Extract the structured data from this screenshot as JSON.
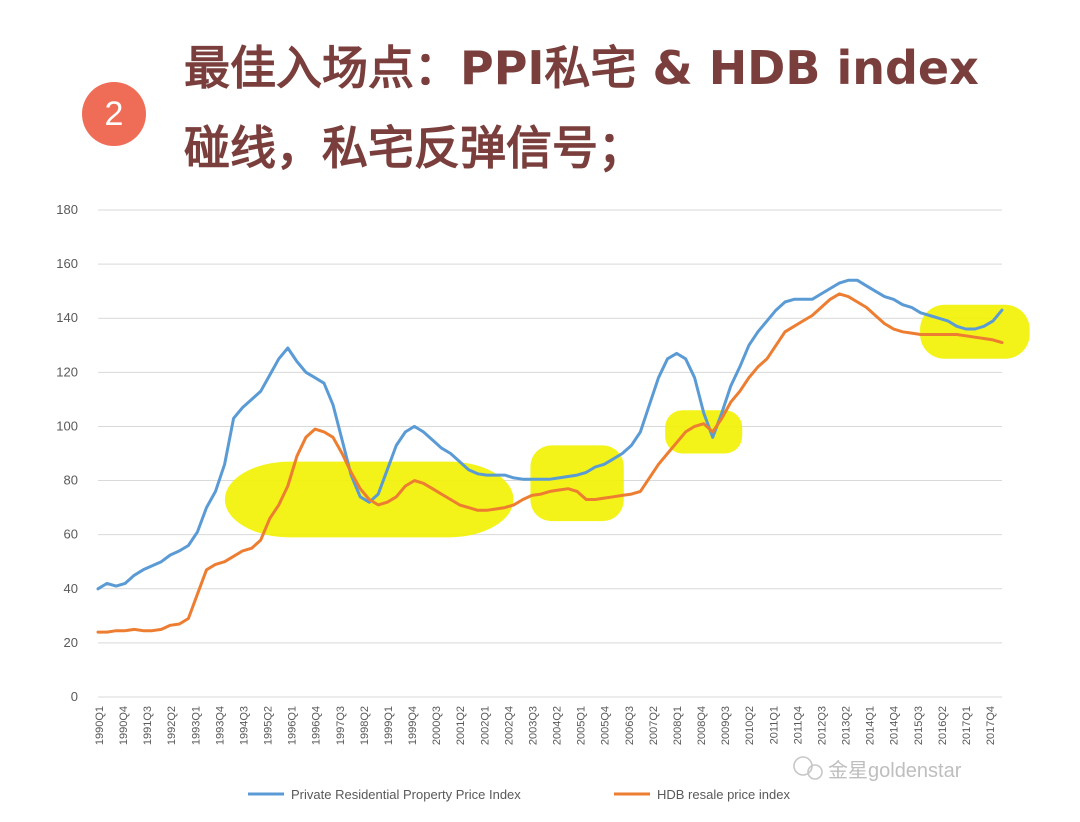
{
  "header": {
    "badge_number": "2",
    "title_line1": "最佳入场点：PPI私宅 & HDB index",
    "title_line2": "碰线，私宅反弹信号；"
  },
  "watermark": "金星goldenstar",
  "colors": {
    "ppi": "#5b9bd5",
    "hdb": "#ed7d31",
    "highlight": "#f2f200",
    "grid": "#d9d9d9",
    "title": "#7a3f3c",
    "badge": "#ef6c57"
  },
  "chart_data": {
    "type": "line",
    "ylim": [
      0,
      180
    ],
    "yticks": [
      "0",
      "20",
      "40",
      "60",
      "80",
      "100",
      "120",
      "140",
      "160",
      "180"
    ],
    "grid": true,
    "legend_position": "bottom",
    "x_tick_labels": [
      "1990Q1",
      "1990Q4",
      "1991Q3",
      "1992Q2",
      "1993Q1",
      "1993Q4",
      "1994Q3",
      "1995Q2",
      "1996Q1",
      "1996Q4",
      "1997Q3",
      "1998Q2",
      "1999Q1",
      "1999Q4",
      "2000Q3",
      "2001Q2",
      "2002Q1",
      "2002Q4",
      "2003Q3",
      "2004Q2",
      "2005Q1",
      "2005Q4",
      "2006Q3",
      "2007Q2",
      "2008Q1",
      "2008Q4",
      "2009Q3",
      "2010Q2",
      "2011Q1",
      "2011Q4",
      "2012Q3",
      "2013Q2",
      "2014Q1",
      "2014Q4",
      "2015Q3",
      "2016Q2",
      "2017Q1",
      "2017Q4"
    ],
    "series": [
      {
        "name": "Private Residential Property Price Index",
        "color": "#5b9bd5",
        "points": [
          [
            0,
            40
          ],
          [
            1,
            42
          ],
          [
            2,
            41
          ],
          [
            3,
            42
          ],
          [
            4,
            45
          ],
          [
            5,
            47
          ],
          [
            6,
            48.5
          ],
          [
            7,
            50
          ],
          [
            8,
            52.5
          ],
          [
            9,
            54
          ],
          [
            10,
            56
          ],
          [
            11,
            61
          ],
          [
            12,
            70
          ],
          [
            13,
            76
          ],
          [
            14,
            86
          ],
          [
            15,
            103
          ],
          [
            16,
            107
          ],
          [
            17,
            110
          ],
          [
            18,
            113
          ],
          [
            19,
            119
          ],
          [
            20,
            125
          ],
          [
            21,
            129
          ],
          [
            22,
            124
          ],
          [
            23,
            120
          ],
          [
            24,
            118
          ],
          [
            25,
            116
          ],
          [
            26,
            108
          ],
          [
            27,
            95
          ],
          [
            28,
            82
          ],
          [
            29,
            74
          ],
          [
            30,
            72
          ],
          [
            31,
            75
          ],
          [
            32,
            84
          ],
          [
            33,
            93
          ],
          [
            34,
            98
          ],
          [
            35,
            100
          ],
          [
            36,
            98
          ],
          [
            37,
            95
          ],
          [
            38,
            92
          ],
          [
            39,
            90
          ],
          [
            40,
            87
          ],
          [
            41,
            84
          ],
          [
            42,
            82.5
          ],
          [
            43,
            82
          ],
          [
            44,
            82
          ],
          [
            45,
            82
          ],
          [
            46,
            81
          ],
          [
            47,
            80.5
          ],
          [
            48,
            80.5
          ],
          [
            49,
            80.5
          ],
          [
            50,
            80.5
          ],
          [
            51,
            81
          ],
          [
            52,
            81.5
          ],
          [
            53,
            82
          ],
          [
            54,
            83
          ],
          [
            55,
            85
          ],
          [
            56,
            86
          ],
          [
            57,
            88
          ],
          [
            58,
            90
          ],
          [
            59,
            93
          ],
          [
            60,
            98
          ],
          [
            61,
            108
          ],
          [
            62,
            118
          ],
          [
            63,
            125
          ],
          [
            64,
            127
          ],
          [
            65,
            125
          ],
          [
            66,
            118
          ],
          [
            67,
            105
          ],
          [
            68,
            96
          ],
          [
            69,
            105
          ],
          [
            70,
            115
          ],
          [
            71,
            122
          ],
          [
            72,
            130
          ],
          [
            73,
            135
          ],
          [
            74,
            139
          ],
          [
            75,
            143
          ],
          [
            76,
            146
          ],
          [
            77,
            147
          ],
          [
            78,
            147
          ],
          [
            79,
            147
          ],
          [
            80,
            149
          ],
          [
            81,
            151
          ],
          [
            82,
            153
          ],
          [
            83,
            154
          ],
          [
            84,
            154
          ],
          [
            85,
            152
          ],
          [
            86,
            150
          ],
          [
            87,
            148
          ],
          [
            88,
            147
          ],
          [
            89,
            145
          ],
          [
            90,
            144
          ],
          [
            91,
            142
          ],
          [
            92,
            141
          ],
          [
            93,
            140
          ],
          [
            94,
            139
          ],
          [
            95,
            137
          ],
          [
            96,
            136
          ],
          [
            97,
            136
          ],
          [
            98,
            137
          ],
          [
            99,
            139
          ],
          [
            100,
            143
          ]
        ]
      },
      {
        "name": "HDB resale price index",
        "color": "#ed7d31",
        "points": [
          [
            0,
            24
          ],
          [
            1,
            24
          ],
          [
            2,
            24.5
          ],
          [
            3,
            24.5
          ],
          [
            4,
            25
          ],
          [
            5,
            24.5
          ],
          [
            6,
            24.5
          ],
          [
            7,
            25
          ],
          [
            8,
            26.5
          ],
          [
            9,
            27
          ],
          [
            10,
            29
          ],
          [
            11,
            38
          ],
          [
            12,
            47
          ],
          [
            13,
            49
          ],
          [
            14,
            50
          ],
          [
            15,
            52
          ],
          [
            16,
            54
          ],
          [
            17,
            55
          ],
          [
            18,
            58
          ],
          [
            19,
            66
          ],
          [
            20,
            71
          ],
          [
            21,
            78
          ],
          [
            22,
            89
          ],
          [
            23,
            96
          ],
          [
            24,
            99
          ],
          [
            25,
            98
          ],
          [
            26,
            96
          ],
          [
            27,
            90
          ],
          [
            28,
            83
          ],
          [
            29,
            77
          ],
          [
            30,
            73
          ],
          [
            31,
            71
          ],
          [
            32,
            72
          ],
          [
            33,
            74
          ],
          [
            34,
            78
          ],
          [
            35,
            80
          ],
          [
            36,
            79
          ],
          [
            37,
            77
          ],
          [
            38,
            75
          ],
          [
            39,
            73
          ],
          [
            40,
            71
          ],
          [
            41,
            70
          ],
          [
            42,
            69
          ],
          [
            43,
            69
          ],
          [
            44,
            69.5
          ],
          [
            45,
            70
          ],
          [
            46,
            71
          ],
          [
            47,
            73
          ],
          [
            48,
            74.5
          ],
          [
            49,
            75
          ],
          [
            50,
            76
          ],
          [
            51,
            76.5
          ],
          [
            52,
            77
          ],
          [
            53,
            76
          ],
          [
            54,
            73
          ],
          [
            55,
            73
          ],
          [
            56,
            73.5
          ],
          [
            57,
            74
          ],
          [
            58,
            74.5
          ],
          [
            59,
            75
          ],
          [
            60,
            76
          ],
          [
            61,
            81
          ],
          [
            62,
            86
          ],
          [
            63,
            90
          ],
          [
            64,
            94
          ],
          [
            65,
            98
          ],
          [
            66,
            100
          ],
          [
            67,
            101
          ],
          [
            68,
            98
          ],
          [
            69,
            103
          ],
          [
            70,
            109
          ],
          [
            71,
            113
          ],
          [
            72,
            118
          ],
          [
            73,
            122
          ],
          [
            74,
            125
          ],
          [
            75,
            130
          ],
          [
            76,
            135
          ],
          [
            77,
            137
          ],
          [
            78,
            139
          ],
          [
            79,
            141
          ],
          [
            80,
            144
          ],
          [
            81,
            147
          ],
          [
            82,
            149
          ],
          [
            83,
            148
          ],
          [
            84,
            146
          ],
          [
            85,
            144
          ],
          [
            86,
            141
          ],
          [
            87,
            138
          ],
          [
            88,
            136
          ],
          [
            89,
            135
          ],
          [
            90,
            134.5
          ],
          [
            91,
            134
          ],
          [
            92,
            134
          ],
          [
            93,
            134
          ],
          [
            94,
            134
          ],
          [
            95,
            134
          ],
          [
            96,
            133.5
          ],
          [
            97,
            133
          ],
          [
            98,
            132.5
          ],
          [
            99,
            132
          ],
          [
            100,
            131
          ]
        ]
      }
    ]
  }
}
